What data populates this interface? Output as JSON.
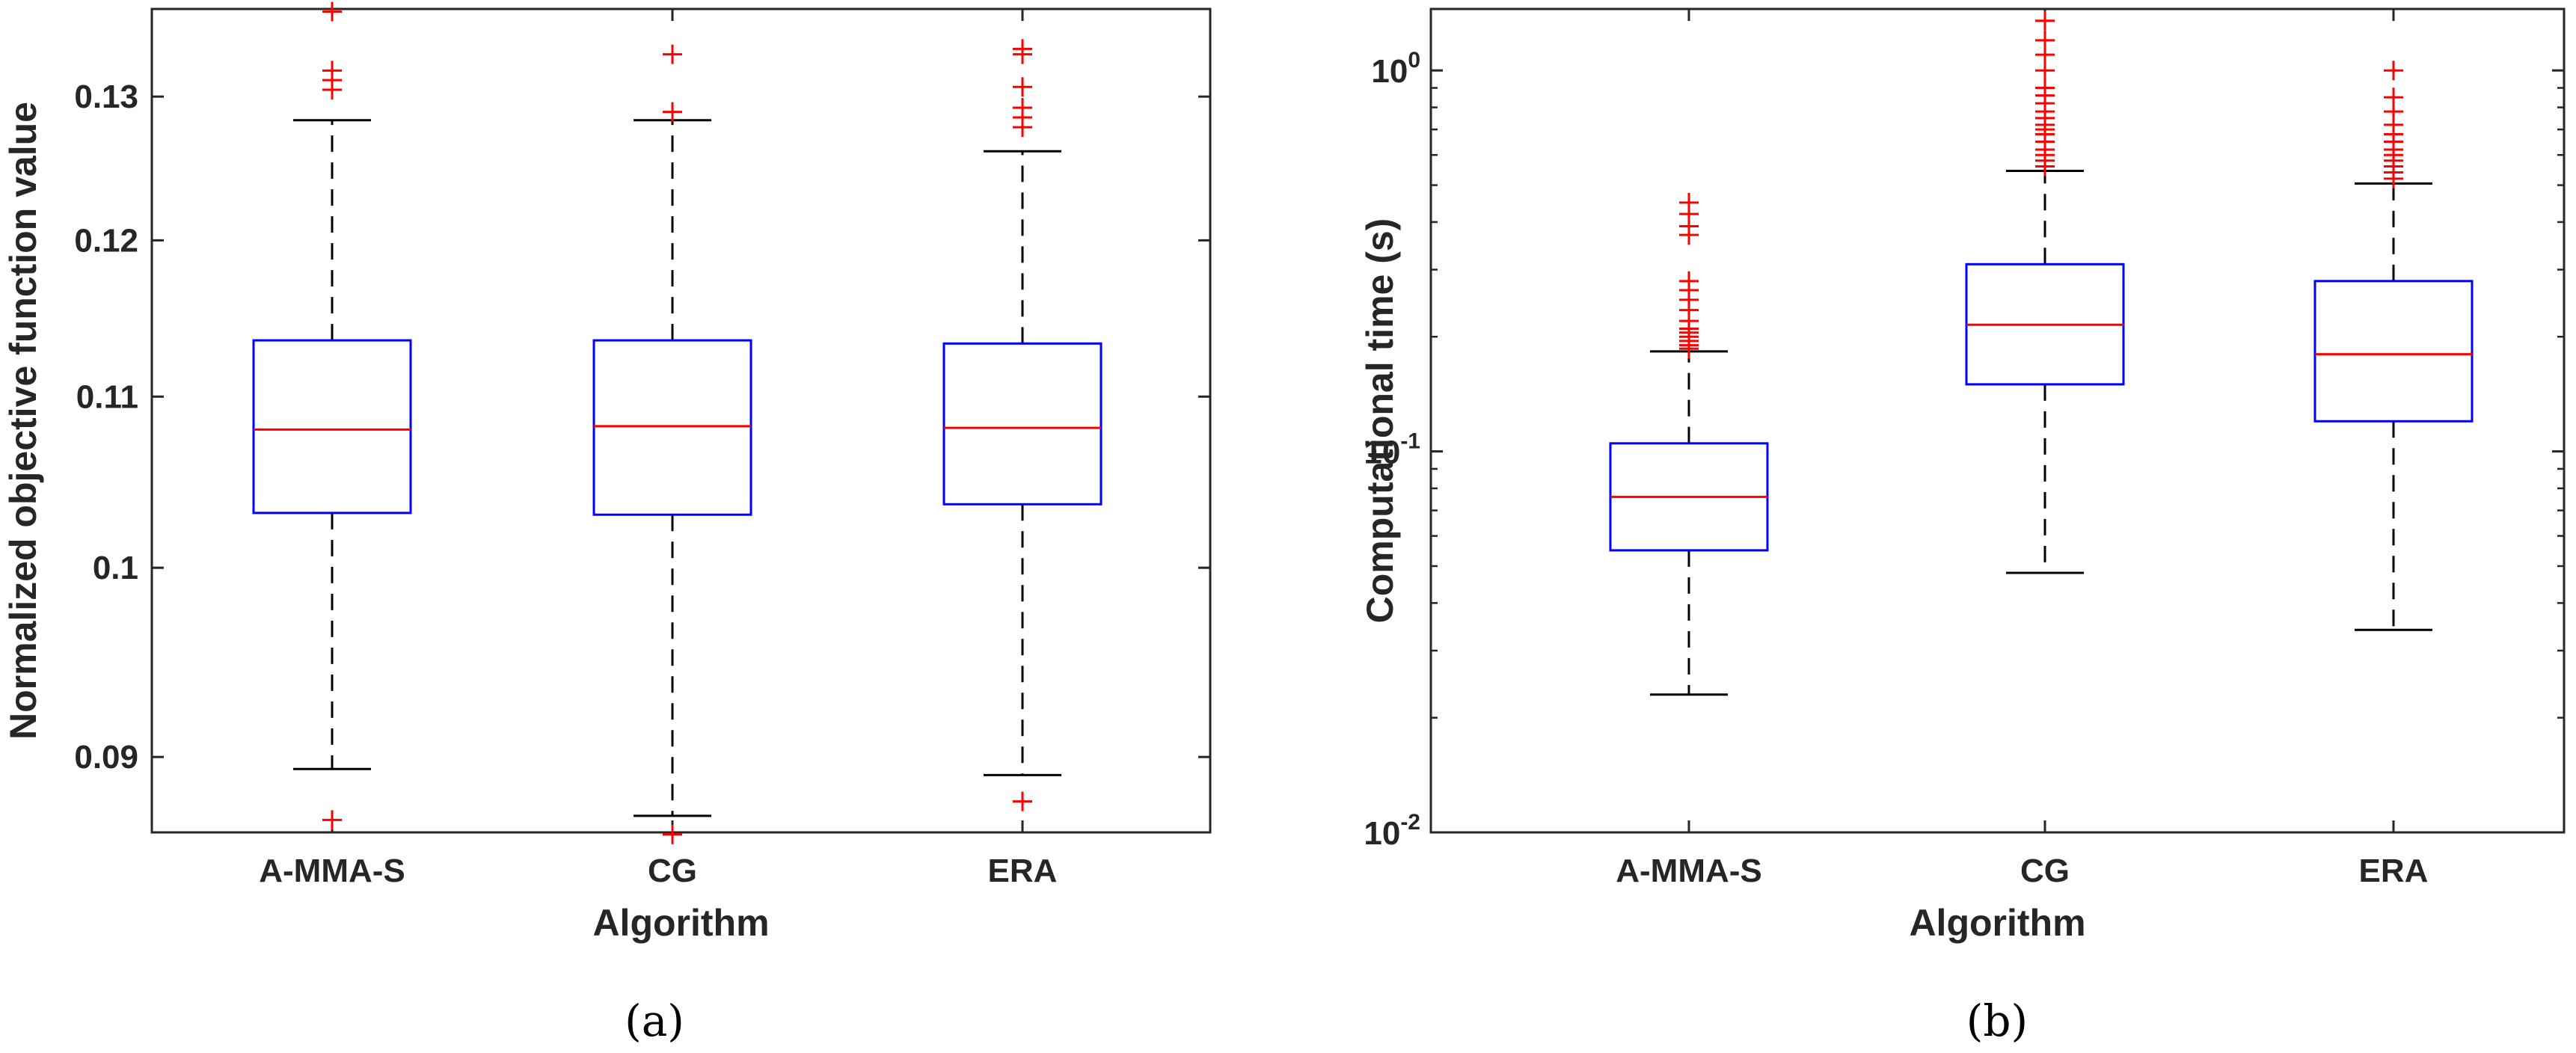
{
  "colors": {
    "box": "#0000ff",
    "median": "#ff0000",
    "outlier": "#ff0000",
    "whisker": "#000000",
    "axis": "#262626"
  },
  "chart_data": [
    {
      "type": "boxplot",
      "subfigure_label": "(a)",
      "xlabel": "Algorithm",
      "ylabel": "Normalized objective function value",
      "yscale": "log",
      "ylim": [
        0.0863,
        0.1365
      ],
      "yticks": [
        0.09,
        0.1,
        0.11,
        0.12,
        0.13
      ],
      "ytick_labels": [
        "0.09",
        "0.1",
        "0.11",
        "0.12",
        "0.13"
      ],
      "categories": [
        "A-MMA-S",
        "CG",
        "ERA"
      ],
      "boxes": [
        {
          "name": "A-MMA-S",
          "whisker_low": 0.0894,
          "q1": 0.1031,
          "median": 0.108,
          "q3": 0.1135,
          "whisker_high": 0.1283,
          "outliers": [
            0.0869,
            0.1305,
            0.1312,
            0.1319,
            0.1363
          ]
        },
        {
          "name": "CG",
          "whisker_low": 0.0871,
          "q1": 0.103,
          "median": 0.1082,
          "q3": 0.1135,
          "whisker_high": 0.1283,
          "outliers": [
            0.0862,
            0.1289,
            0.1331
          ]
        },
        {
          "name": "ERA",
          "whisker_low": 0.0891,
          "q1": 0.1036,
          "median": 0.1081,
          "q3": 0.1133,
          "whisker_high": 0.1261,
          "outliers": [
            0.0878,
            0.1278,
            0.1285,
            0.1292,
            0.1307,
            0.1331,
            0.1335
          ]
        }
      ]
    },
    {
      "type": "boxplot",
      "subfigure_label": "(b)",
      "xlabel": "Algorithm",
      "ylabel": "Computational time (s)",
      "yscale": "log",
      "ylim": [
        0.01,
        1.45
      ],
      "yticks": [
        0.01,
        0.1,
        1
      ],
      "ytick_labels": [
        [
          "10",
          "-2"
        ],
        [
          "10",
          "-1"
        ],
        [
          "10",
          "0"
        ]
      ],
      "categories": [
        "A-MMA-S",
        "CG",
        "ERA"
      ],
      "boxes": [
        {
          "name": "A-MMA-S",
          "whisker_low": 0.023,
          "q1": 0.055,
          "median": 0.076,
          "q3": 0.105,
          "whisker_high": 0.183,
          "outliers": [
            0.186,
            0.19,
            0.195,
            0.2,
            0.205,
            0.21,
            0.22,
            0.235,
            0.25,
            0.265,
            0.28,
            0.37,
            0.39,
            0.42,
            0.45
          ]
        },
        {
          "name": "CG",
          "whisker_low": 0.048,
          "q1": 0.15,
          "median": 0.215,
          "q3": 0.31,
          "whisker_high": 0.545,
          "outliers": [
            0.56,
            0.58,
            0.6,
            0.62,
            0.65,
            0.68,
            0.7,
            0.72,
            0.75,
            0.78,
            0.82,
            0.86,
            0.9,
            1.0,
            1.1,
            1.2,
            1.35
          ]
        },
        {
          "name": "ERA",
          "whisker_low": 0.034,
          "q1": 0.12,
          "median": 0.18,
          "q3": 0.28,
          "whisker_high": 0.505,
          "outliers": [
            0.52,
            0.54,
            0.56,
            0.58,
            0.6,
            0.62,
            0.65,
            0.68,
            0.72,
            0.78,
            0.85,
            1.0
          ]
        }
      ]
    }
  ]
}
